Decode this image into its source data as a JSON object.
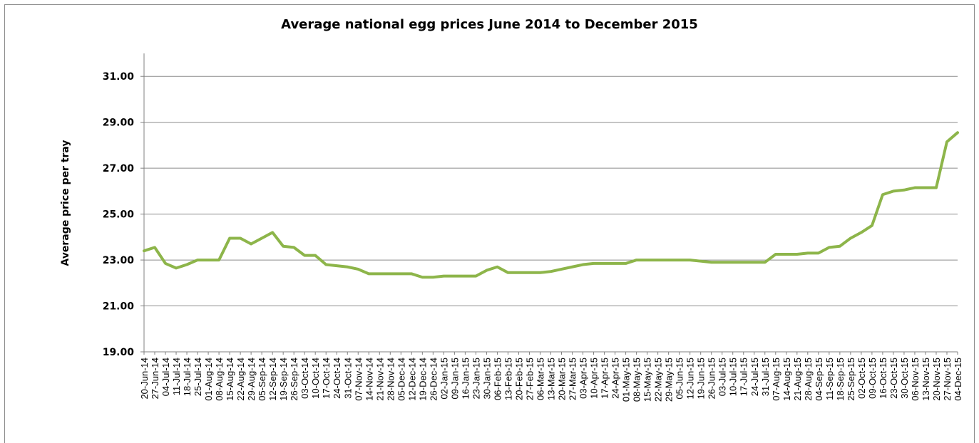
{
  "chart_data": {
    "type": "line",
    "title": "Average national egg prices June 2014 to December 2015",
    "xlabel": "",
    "ylabel": "Average price per tray",
    "ylim": [
      19,
      32
    ],
    "yticks": [
      "19.00",
      "21.00",
      "23.00",
      "25.00",
      "27.00",
      "29.00",
      "31.00"
    ],
    "grid": true,
    "legend": "none",
    "line_color": "#8db54a",
    "grid_color": "#8c8c8c",
    "categories": [
      "20-Jun-14",
      "27-Jun-14",
      "04-Jul-14",
      "11-Jul-14",
      "18-Jul-14",
      "25-Jul-14",
      "01-Aug-14",
      "08-Aug-14",
      "15-Aug-14",
      "22-Aug-14",
      "29-Aug-14",
      "05-Sep-14",
      "12-Sep-14",
      "19-Sep-14",
      "26-Sep-14",
      "03-Oct-14",
      "10-Oct-14",
      "17-Oct-14",
      "24-Oct-14",
      "31-Oct-14",
      "07-Nov-14",
      "14-Nov-14",
      "21-Nov-14",
      "28-Nov-14",
      "05-Dec-14",
      "12-Dec-14",
      "19-Dec-14",
      "26-Dec-14",
      "02-Jan-15",
      "09-Jan-15",
      "16-Jan-15",
      "23-Jan-15",
      "30-Jan-15",
      "06-Feb-15",
      "13-Feb-15",
      "20-Feb-15",
      "27-Feb-15",
      "06-Mar-15",
      "13-Mar-15",
      "20-Mar-15",
      "27-Mar-15",
      "03-Apr-15",
      "10-Apr-15",
      "17-Apr-15",
      "24-Apr-15",
      "01-May-15",
      "08-May-15",
      "15-May-15",
      "22-May-15",
      "29-May-15",
      "05-Jun-15",
      "12-Jun-15",
      "19-Jun-15",
      "26-Jun-15",
      "03-Jul-15",
      "10-Jul-15",
      "17-Jul-15",
      "24-Jul-15",
      "31-Jul-15",
      "07-Aug-15",
      "14-Aug-15",
      "21-Aug-15",
      "28-Aug-15",
      "04-Sep-15",
      "11-Sep-15",
      "18-Sep-15",
      "25-Sep-15",
      "02-Oct-15",
      "09-Oct-15",
      "16-Oct-15",
      "23-Oct-15",
      "30-Oct-15",
      "06-Nov-15",
      "13-Nov-15",
      "20-Nov-15",
      "27-Nov-15",
      "04-Dec-15"
    ],
    "series": [
      {
        "values": [
          23.4,
          23.55,
          22.85,
          22.65,
          22.8,
          23.0,
          23.0,
          23.0,
          23.95,
          23.95,
          23.7,
          23.95,
          24.2,
          23.6,
          23.55,
          23.2,
          23.2,
          22.8,
          22.75,
          22.7,
          22.6,
          22.4,
          22.4,
          22.4,
          22.4,
          22.4,
          22.25,
          22.25,
          22.3,
          22.3,
          22.3,
          22.3,
          22.55,
          22.7,
          22.45,
          22.45,
          22.45,
          22.45,
          22.5,
          22.6,
          22.7,
          22.8,
          22.85,
          22.85,
          22.85,
          22.85,
          23.0,
          23.0,
          23.0,
          23.0,
          23.0,
          23.0,
          22.95,
          22.9,
          22.9,
          22.9,
          22.9,
          22.9,
          22.9,
          23.25,
          23.25,
          23.25,
          23.3,
          23.3,
          23.55,
          23.6,
          23.95,
          24.2,
          24.5,
          25.85,
          26.0,
          26.05,
          26.15,
          26.15,
          26.15,
          28.15,
          28.55
        ]
      }
    ]
  }
}
